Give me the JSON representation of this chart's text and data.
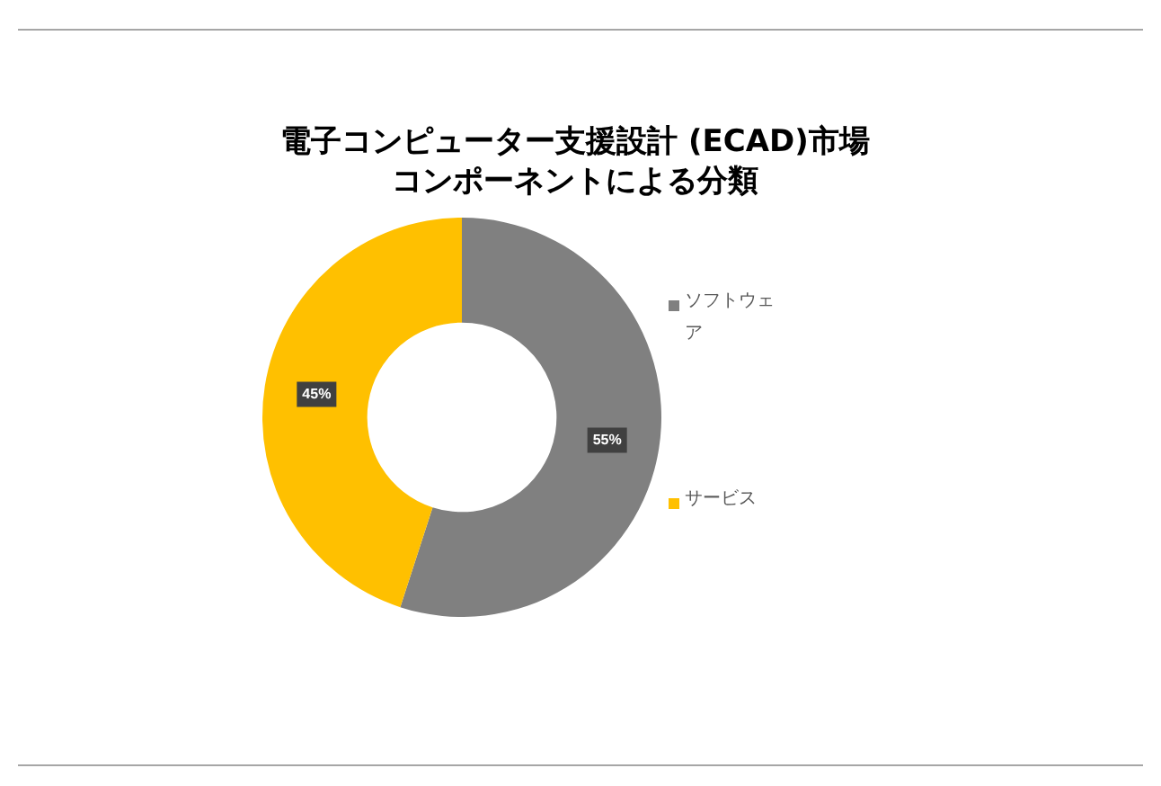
{
  "chart_data": {
    "type": "donut",
    "title": "電子コンピューター支援設計 (ECAD)市場",
    "subtitle": "コンポーネントによる分類",
    "categories": [
      "ソフトウェア",
      "サービス"
    ],
    "values": [
      55,
      45
    ],
    "colors": [
      "#808080",
      "#ffc000"
    ],
    "value_labels": [
      "55%",
      "45%"
    ],
    "legend": "right"
  }
}
